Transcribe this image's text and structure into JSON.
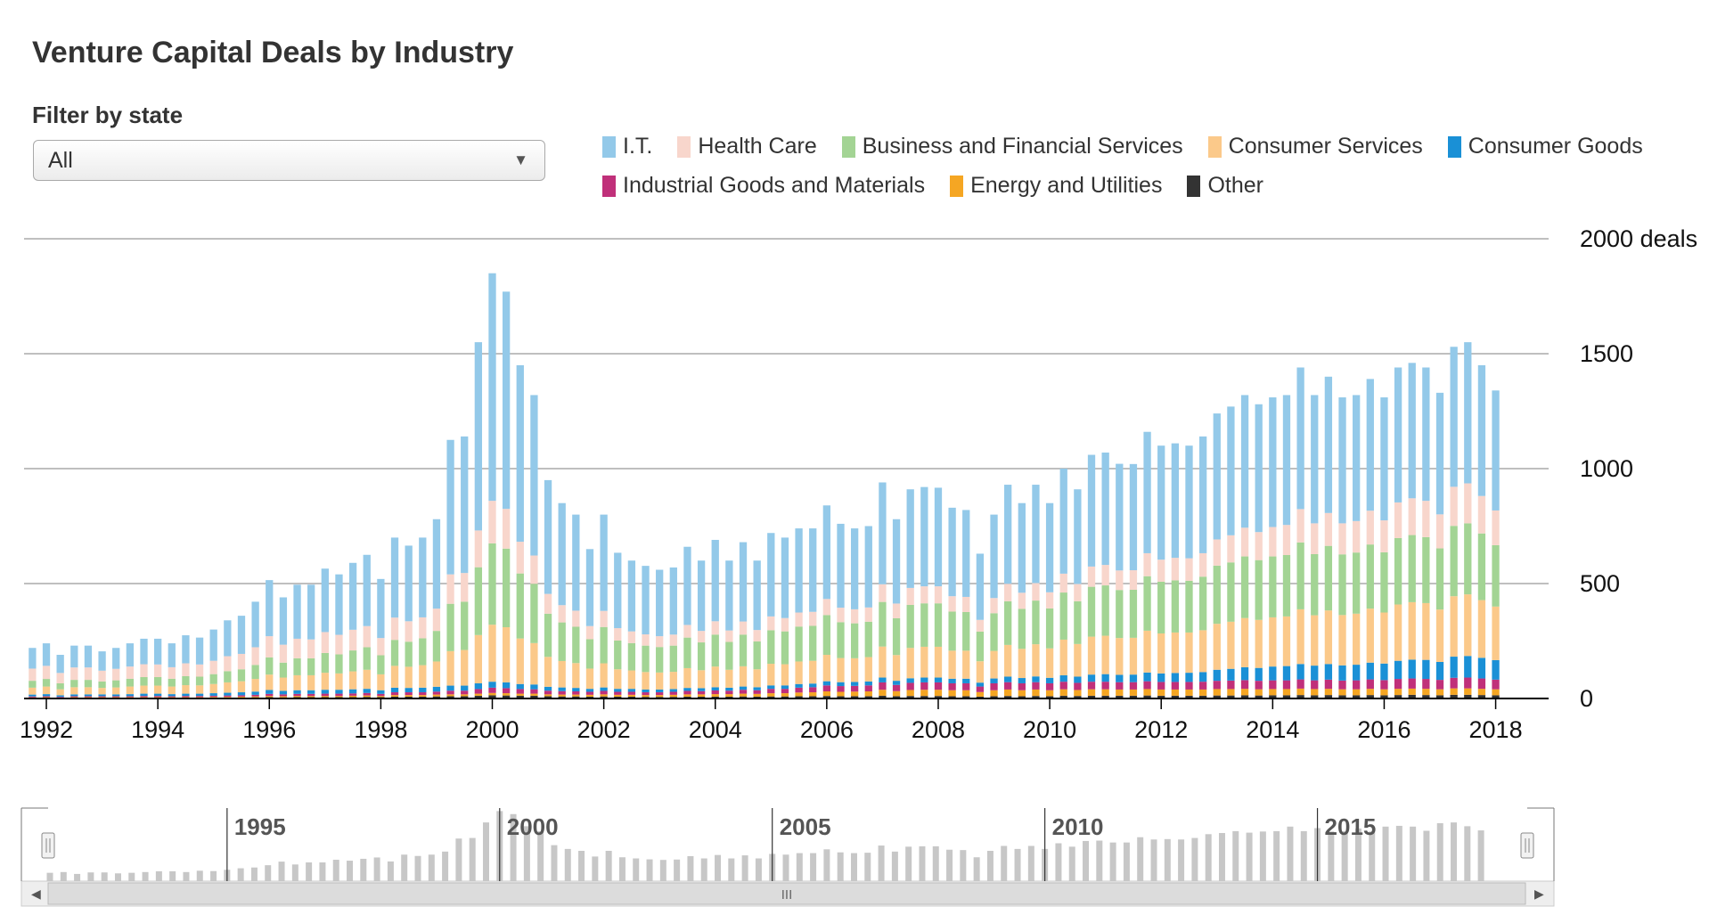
{
  "title": "Venture Capital Deals by Industry",
  "filter": {
    "label": "Filter by state",
    "selected": "All"
  },
  "legend": [
    {
      "name": "I.T.",
      "color": "#93c9e9"
    },
    {
      "name": "Health Care",
      "color": "#f8d6cc"
    },
    {
      "name": "Business and Financial Services",
      "color": "#a3d494"
    },
    {
      "name": "Consumer Services",
      "color": "#fbc98a"
    },
    {
      "name": "Consumer Goods",
      "color": "#1a90d6"
    },
    {
      "name": "Industrial Goods and Materials",
      "color": "#c0307a"
    },
    {
      "name": "Energy and Utilities",
      "color": "#f5a623"
    },
    {
      "name": "Other",
      "color": "#333333"
    }
  ],
  "chart_data": {
    "type": "bar",
    "stacked": true,
    "x_start_year": 1991.75,
    "x_step_years": 0.25,
    "ylim": [
      0,
      2000
    ],
    "yticks": [
      "0",
      "500",
      "1000",
      "1500",
      "2000 deals"
    ],
    "xticks": [
      "1992",
      "1994",
      "1996",
      "1998",
      "2000",
      "2002",
      "2004",
      "2006",
      "2008",
      "2010",
      "2012",
      "2014",
      "2016",
      "2018"
    ],
    "grid": true,
    "totals": [
      220,
      240,
      190,
      230,
      230,
      205,
      220,
      240,
      260,
      260,
      240,
      275,
      265,
      300,
      340,
      360,
      420,
      515,
      440,
      495,
      495,
      565,
      540,
      590,
      625,
      520,
      700,
      665,
      700,
      780,
      1125,
      1140,
      1550,
      1850,
      1770,
      1450,
      1320,
      950,
      850,
      800,
      650,
      800,
      630,
      600,
      575,
      560,
      570,
      660,
      600,
      690,
      600,
      680,
      600,
      720,
      700,
      740,
      740,
      840,
      760,
      740,
      750,
      940,
      780,
      910,
      920,
      920,
      830,
      820,
      630,
      800,
      930,
      850,
      930,
      850,
      1000,
      910,
      1060,
      1070,
      1020,
      1020,
      1160,
      1100,
      1110,
      1100,
      1140,
      1240,
      1270,
      1320,
      1280,
      1310,
      1320,
      1440,
      1320,
      1400,
      1310,
      1320,
      1390,
      1310,
      1440,
      1460,
      1440,
      1330,
      1530,
      1550,
      1450,
      1340
    ],
    "series": [
      {
        "name": "Other",
        "color": "#333333",
        "values": [
          3,
          3,
          2,
          3,
          3,
          3,
          3,
          3,
          3,
          3,
          3,
          3,
          3,
          4,
          4,
          4,
          5,
          6,
          5,
          6,
          6,
          6,
          6,
          6,
          7,
          6,
          8,
          8,
          8,
          9,
          10,
          10,
          12,
          14,
          13,
          12,
          12,
          10,
          9,
          9,
          8,
          9,
          8,
          8,
          7,
          7,
          7,
          8,
          8,
          8,
          8,
          9,
          8,
          9,
          9,
          10,
          10,
          11,
          10,
          10,
          10,
          12,
          10,
          11,
          11,
          11,
          10,
          10,
          8,
          10,
          11,
          10,
          11,
          10,
          12,
          11,
          12,
          12,
          12,
          12,
          13,
          12,
          12,
          12,
          12,
          13,
          13,
          14,
          13,
          14,
          14,
          15,
          14,
          15,
          14,
          14,
          15,
          14,
          15,
          16,
          15,
          14,
          16,
          16,
          15,
          14
        ]
      },
      {
        "name": "Energy and Utilities",
        "color": "#f5a623",
        "values": [
          2,
          3,
          2,
          3,
          3,
          3,
          3,
          3,
          3,
          3,
          3,
          3,
          3,
          3,
          3,
          4,
          4,
          5,
          5,
          5,
          5,
          5,
          5,
          6,
          6,
          5,
          7,
          7,
          7,
          8,
          8,
          8,
          9,
          10,
          10,
          9,
          9,
          8,
          8,
          8,
          8,
          9,
          8,
          8,
          8,
          8,
          9,
          10,
          10,
          11,
          11,
          12,
          12,
          14,
          14,
          16,
          17,
          20,
          19,
          20,
          21,
          26,
          22,
          26,
          27,
          27,
          26,
          26,
          20,
          26,
          28,
          26,
          28,
          26,
          28,
          26,
          28,
          28,
          27,
          27,
          28,
          27,
          27,
          27,
          27,
          28,
          28,
          28,
          27,
          27,
          27,
          28,
          27,
          27,
          26,
          26,
          27,
          26,
          27,
          27,
          27,
          26,
          28,
          28,
          27,
          26
        ]
      },
      {
        "name": "Industrial Goods and Materials",
        "color": "#c0307a",
        "values": [
          4,
          4,
          3,
          4,
          4,
          4,
          4,
          4,
          5,
          5,
          4,
          5,
          5,
          5,
          6,
          6,
          7,
          9,
          8,
          9,
          9,
          10,
          10,
          10,
          11,
          9,
          12,
          12,
          12,
          13,
          16,
          16,
          20,
          23,
          22,
          20,
          19,
          16,
          15,
          14,
          13,
          15,
          13,
          13,
          12,
          12,
          13,
          15,
          14,
          16,
          15,
          17,
          16,
          19,
          19,
          21,
          22,
          26,
          25,
          25,
          26,
          32,
          27,
          31,
          32,
          32,
          30,
          30,
          24,
          30,
          32,
          30,
          32,
          30,
          33,
          31,
          33,
          33,
          32,
          32,
          34,
          33,
          33,
          33,
          34,
          36,
          37,
          38,
          37,
          38,
          38,
          40,
          38,
          40,
          38,
          39,
          41,
          40,
          43,
          44,
          43,
          41,
          46,
          47,
          45,
          42
        ]
      },
      {
        "name": "Consumer Goods",
        "color": "#1a90d6",
        "values": [
          8,
          9,
          7,
          8,
          8,
          8,
          8,
          9,
          10,
          10,
          9,
          10,
          10,
          11,
          12,
          13,
          14,
          17,
          15,
          16,
          16,
          17,
          17,
          18,
          18,
          16,
          20,
          19,
          20,
          21,
          22,
          22,
          25,
          26,
          25,
          22,
          21,
          17,
          16,
          15,
          13,
          15,
          13,
          13,
          12,
          12,
          12,
          13,
          13,
          14,
          13,
          14,
          13,
          15,
          15,
          16,
          16,
          18,
          17,
          17,
          17,
          21,
          18,
          20,
          21,
          21,
          20,
          20,
          17,
          21,
          24,
          23,
          25,
          24,
          28,
          27,
          31,
          33,
          32,
          33,
          38,
          37,
          39,
          40,
          42,
          48,
          51,
          56,
          56,
          60,
          62,
          67,
          64,
          68,
          66,
          68,
          73,
          72,
          79,
          82,
          83,
          78,
          92,
          94,
          90,
          85
        ]
      },
      {
        "name": "Consumer Services",
        "color": "#fbc98a",
        "values": [
          30,
          33,
          26,
          31,
          31,
          28,
          30,
          33,
          35,
          35,
          33,
          37,
          36,
          40,
          45,
          48,
          55,
          67,
          58,
          65,
          65,
          74,
          71,
          78,
          83,
          69,
          95,
          92,
          98,
          110,
          150,
          155,
          210,
          248,
          240,
          198,
          180,
          130,
          115,
          108,
          88,
          105,
          85,
          80,
          76,
          74,
          75,
          86,
          78,
          90,
          78,
          88,
          78,
          94,
          92,
          98,
          99,
          115,
          105,
          103,
          106,
          135,
          112,
          132,
          134,
          134,
          122,
          122,
          93,
          120,
          138,
          127,
          140,
          128,
          155,
          142,
          165,
          167,
          160,
          160,
          182,
          174,
          176,
          175,
          182,
          200,
          205,
          214,
          209,
          214,
          216,
          238,
          219,
          233,
          219,
          222,
          235,
          222,
          245,
          250,
          247,
          228,
          263,
          268,
          251,
          233
        ]
      },
      {
        "name": "Business and Financial Services",
        "color": "#a3d494",
        "values": [
          30,
          33,
          26,
          32,
          32,
          28,
          31,
          34,
          37,
          37,
          34,
          39,
          38,
          43,
          49,
          52,
          61,
          75,
          65,
          74,
          74,
          86,
          83,
          91,
          98,
          83,
          113,
          109,
          117,
          133,
          206,
          210,
          295,
          354,
          342,
          283,
          258,
          188,
          168,
          158,
          128,
          158,
          125,
          119,
          115,
          111,
          114,
          133,
          121,
          139,
          121,
          138,
          121,
          146,
          143,
          152,
          152,
          173,
          156,
          152,
          154,
          194,
          160,
          187,
          189,
          189,
          170,
          168,
          129,
          164,
          190,
          174,
          190,
          174,
          205,
          186,
          217,
          219,
          209,
          209,
          237,
          225,
          227,
          225,
          233,
          253,
          258,
          268,
          260,
          265,
          267,
          291,
          266,
          281,
          264,
          266,
          279,
          262,
          289,
          292,
          287,
          266,
          306,
          309,
          290,
          267
        ]
      },
      {
        "name": "Health Care",
        "color": "#f8d6cc",
        "values": [
          53,
          57,
          45,
          54,
          54,
          47,
          50,
          53,
          56,
          55,
          50,
          56,
          53,
          58,
          65,
          67,
          77,
          92,
          78,
          85,
          82,
          91,
          85,
          90,
          92,
          75,
          97,
          89,
          91,
          97,
          128,
          125,
          160,
          185,
          173,
          138,
          123,
          86,
          75,
          70,
          57,
          70,
          54,
          51,
          49,
          47,
          48,
          55,
          50,
          58,
          50,
          57,
          50,
          60,
          58,
          61,
          61,
          70,
          63,
          61,
          62,
          77,
          64,
          74,
          74,
          74,
          67,
          66,
          51,
          66,
          76,
          70,
          76,
          70,
          82,
          75,
          88,
          89,
          85,
          85,
          100,
          96,
          98,
          98,
          102,
          114,
          118,
          125,
          122,
          128,
          131,
          145,
          134,
          143,
          135,
          137,
          147,
          139,
          155,
          160,
          158,
          148,
          170,
          174,
          163,
          151
        ]
      },
      {
        "name": "I.T.",
        "color": "#93c9e9",
        "values": [
          90,
          98,
          79,
          95,
          95,
          84,
          91,
          101,
          111,
          112,
          104,
          122,
          117,
          136,
          156,
          166,
          198,
          244,
          206,
          235,
          238,
          276,
          263,
          291,
          310,
          257,
          348,
          329,
          347,
          389,
          585,
          594,
          819,
          990,
          945,
          768,
          698,
          495,
          444,
          418,
          335,
          419,
          328,
          308,
          298,
          289,
          292,
          340,
          306,
          354,
          304,
          345,
          302,
          363,
          350,
          366,
          363,
          407,
          365,
          352,
          354,
          443,
          367,
          429,
          432,
          429,
          385,
          378,
          288,
          363,
          431,
          390,
          428,
          388,
          457,
          412,
          486,
          489,
          464,
          462,
          528,
          496,
          498,
          490,
          508,
          548,
          560,
          577,
          556,
          564,
          565,
          616,
          558,
          593,
          548,
          548,
          573,
          535,
          587,
          589,
          580,
          529,
          609,
          614,
          569,
          522
        ]
      }
    ]
  },
  "navigator": {
    "labels": [
      "1995",
      "2000",
      "2005",
      "2010",
      "2015"
    ],
    "scroll_grip": "III"
  }
}
